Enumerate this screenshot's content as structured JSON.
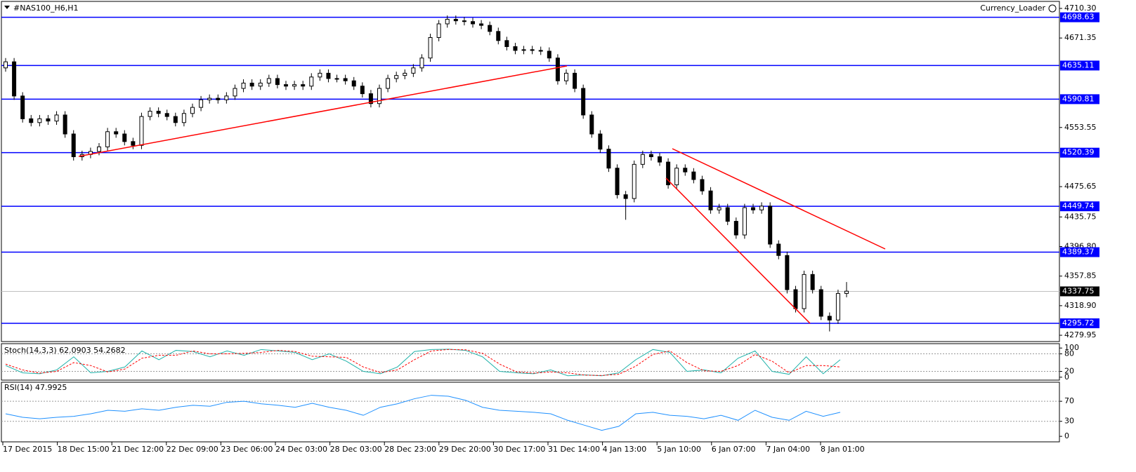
{
  "chart_data": {
    "type": "candlestick",
    "symbol": "#NAS100_H6,H1",
    "indicator_label": "Currency_Loader",
    "open": [
      4632,
      4640,
      4595,
      4565,
      4560,
      4565,
      4562,
      4570,
      4545,
      4515,
      4518,
      4522,
      4528,
      4548,
      4545,
      4535,
      4530,
      4568,
      4575,
      4572,
      4568,
      4560,
      4572,
      4580,
      4590,
      4592,
      4590,
      4595,
      4605,
      4612,
      4608,
      4612,
      4618,
      4610,
      4608,
      4610,
      4608,
      4620,
      4625,
      4618,
      4618,
      4615,
      4608,
      4598,
      4585,
      4605,
      4618,
      4622,
      4625,
      4632,
      4645,
      4672,
      4690,
      4696,
      4694,
      4693,
      4690,
      4688,
      4680,
      4668,
      4660,
      4655,
      4656,
      4655,
      4654,
      4645,
      4615,
      4625,
      4605,
      4570,
      4545,
      4525,
      4500,
      4465,
      4460,
      4505,
      4518,
      4515,
      4508,
      4478,
      4500,
      4495,
      4485,
      4470,
      4445,
      4448,
      4430,
      4412,
      4448,
      4445,
      4450,
      4400,
      4385,
      4340,
      4315,
      4360,
      4340,
      4305,
      4300,
      4335
    ],
    "high": [
      4645,
      4645,
      4600,
      4570,
      4570,
      4570,
      4575,
      4575,
      4550,
      4523,
      4527,
      4533,
      4553,
      4553,
      4550,
      4540,
      4573,
      4580,
      4580,
      4577,
      4573,
      4577,
      4585,
      4595,
      4597,
      4597,
      4600,
      4610,
      4617,
      4617,
      4617,
      4623,
      4623,
      4615,
      4615,
      4615,
      4625,
      4630,
      4630,
      4623,
      4623,
      4620,
      4613,
      4603,
      4610,
      4623,
      4627,
      4630,
      4637,
      4650,
      4677,
      4695,
      4701,
      4701,
      4699,
      4698,
      4695,
      4693,
      4685,
      4673,
      4665,
      4661,
      4661,
      4660,
      4659,
      4650,
      4630,
      4630,
      4610,
      4575,
      4550,
      4530,
      4505,
      4470,
      4510,
      4523,
      4523,
      4520,
      4513,
      4505,
      4505,
      4500,
      4490,
      4475,
      4453,
      4453,
      4435,
      4453,
      4453,
      4455,
      4455,
      4405,
      4390,
      4345,
      4365,
      4365,
      4345,
      4310,
      4340,
      4350
    ],
    "low": [
      4627,
      4590,
      4560,
      4555,
      4555,
      4557,
      4557,
      4540,
      4510,
      4510,
      4513,
      4517,
      4523,
      4540,
      4530,
      4525,
      4525,
      4563,
      4567,
      4563,
      4555,
      4555,
      4567,
      4575,
      4585,
      4585,
      4585,
      4590,
      4600,
      4603,
      4603,
      4607,
      4605,
      4603,
      4603,
      4603,
      4603,
      4615,
      4613,
      4613,
      4610,
      4603,
      4593,
      4580,
      4580,
      4600,
      4613,
      4617,
      4620,
      4627,
      4640,
      4667,
      4685,
      4689,
      4688,
      4685,
      4683,
      4675,
      4663,
      4655,
      4650,
      4650,
      4650,
      4649,
      4640,
      4610,
      4610,
      4600,
      4565,
      4540,
      4520,
      4495,
      4460,
      4432,
      4455,
      4500,
      4510,
      4503,
      4473,
      4473,
      4490,
      4480,
      4465,
      4440,
      4440,
      4425,
      4407,
      4407,
      4440,
      4440,
      4395,
      4380,
      4335,
      4310,
      4310,
      4335,
      4300,
      4285,
      4295,
      4330
    ],
    "close": [
      4640,
      4595,
      4565,
      4560,
      4565,
      4562,
      4570,
      4545,
      4515,
      4518,
      4522,
      4528,
      4548,
      4545,
      4535,
      4530,
      4568,
      4575,
      4572,
      4568,
      4560,
      4572,
      4580,
      4590,
      4592,
      4590,
      4595,
      4605,
      4612,
      4608,
      4612,
      4618,
      4610,
      4608,
      4610,
      4608,
      4620,
      4625,
      4618,
      4618,
      4615,
      4608,
      4598,
      4585,
      4605,
      4618,
      4622,
      4625,
      4632,
      4645,
      4672,
      4690,
      4696,
      4694,
      4693,
      4690,
      4688,
      4680,
      4668,
      4660,
      4655,
      4656,
      4655,
      4654,
      4645,
      4615,
      4625,
      4605,
      4570,
      4545,
      4525,
      4500,
      4465,
      4460,
      4505,
      4518,
      4515,
      4508,
      4478,
      4500,
      4495,
      4485,
      4470,
      4445,
      4448,
      4430,
      4412,
      4448,
      4445,
      4450,
      4400,
      4385,
      4340,
      4315,
      4360,
      4340,
      4305,
      4300,
      4335,
      4338
    ],
    "ylim": [
      4270.75,
      4717.7
    ],
    "yticks": [
      {
        "value": 4710.3,
        "label": "4710.30"
      },
      4671.35,
      4553.55,
      4475.65,
      4435.75,
      {
        "value": 4396.8,
        "label": "4396.80"
      },
      4357.85,
      {
        "value": 4318.9,
        "label": "4318.90"
      },
      4279.95
    ],
    "levels": [
      4698.63,
      4635.11,
      4590.81,
      4520.39,
      4449.74,
      4389.37,
      4295.72
    ],
    "current_price": 4337.75,
    "x_labels": [
      "17 Dec 2015",
      "18 Dec 15:00",
      "21 Dec 12:00",
      "22 Dec 09:00",
      "23 Dec 06:00",
      "24 Dec 03:00",
      "28 Dec 03:00",
      "28 Dec 23:00",
      "29 Dec 20:00",
      "30 Dec 17:00",
      "31 Dec 14:00",
      "4 Jan 13:00",
      "5 Jan 10:00",
      "6 Jan 07:00",
      "7 Jan 04:00",
      "8 Jan 01:00"
    ],
    "colors": {
      "level": "#0000ff",
      "trend": "#ff0000",
      "stoch_main": "#20b2aa",
      "stoch_signal": "#ff0000",
      "rsi": "#1e90ff"
    },
    "stochastic": {
      "title": "Stoch(14,3,3) 62.0903 54.2682",
      "main": [
        40,
        15,
        12,
        25,
        70,
        15,
        20,
        35,
        90,
        60,
        92,
        88,
        70,
        90,
        75,
        95,
        90,
        85,
        60,
        80,
        55,
        20,
        12,
        35,
        88,
        95,
        96,
        92,
        70,
        20,
        15,
        12,
        25,
        5,
        8,
        5,
        15,
        60,
        95,
        85,
        20,
        25,
        15,
        65,
        90,
        20,
        10,
        70,
        12,
        60
      ],
      "signal": [
        45,
        25,
        14,
        20,
        50,
        40,
        18,
        28,
        65,
        75,
        75,
        90,
        80,
        80,
        82,
        85,
        92,
        88,
        72,
        70,
        68,
        35,
        16,
        25,
        60,
        90,
        95,
        94,
        82,
        45,
        18,
        14,
        18,
        15,
        7,
        6,
        10,
        38,
        78,
        90,
        50,
        22,
        20,
        40,
        78,
        55,
        15,
        40,
        40,
        35
      ],
      "ylim": [
        -10,
        115
      ],
      "yticks": [
        0,
        20,
        80,
        100
      ],
      "levels": [
        20,
        80
      ]
    },
    "rsi": {
      "title": "RSI(14) 47.9925",
      "values": [
        45,
        38,
        35,
        38,
        40,
        45,
        52,
        50,
        55,
        52,
        58,
        62,
        60,
        68,
        70,
        65,
        62,
        58,
        66,
        58,
        52,
        42,
        58,
        65,
        75,
        82,
        80,
        72,
        58,
        52,
        50,
        48,
        45,
        32,
        22,
        12,
        20,
        45,
        48,
        42,
        40,
        35,
        42,
        32,
        52,
        38,
        32,
        50,
        40,
        48
      ],
      "ylim": [
        -11,
        108
      ],
      "yticks": [
        0,
        30,
        70
      ],
      "levels": [
        30,
        70
      ]
    }
  }
}
